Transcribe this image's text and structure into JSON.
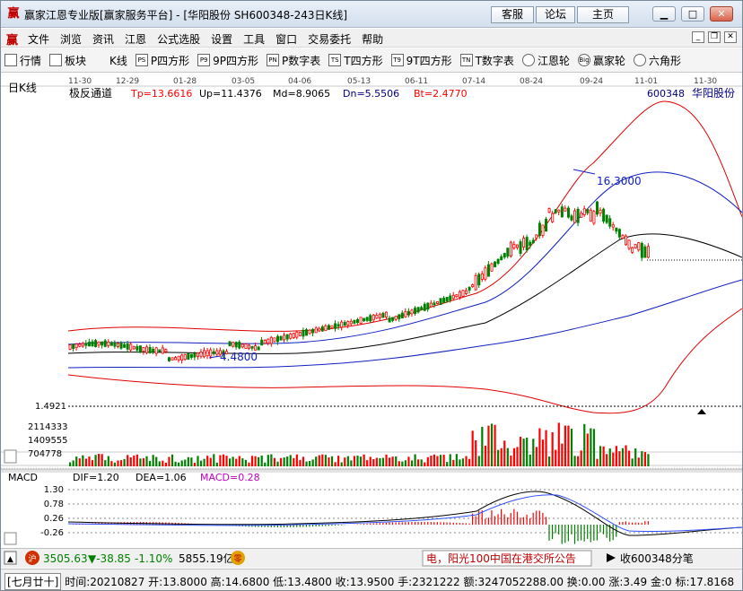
{
  "titlebar": {
    "logo_glyph": "赢",
    "title": "赢家江恩专业版[赢家服务平台] - [华阳股份  SH600348-243日K线]",
    "btn_kefu": "客服",
    "btn_luntan": "论坛",
    "btn_home": "主页"
  },
  "menubar": {
    "items": [
      "文件",
      "浏览",
      "资讯",
      "江恩",
      "公式选股",
      "设置",
      "工具",
      "窗口",
      "交易委托",
      "帮助"
    ]
  },
  "toolbar": {
    "items": [
      {
        "label": "行情",
        "icon": "grid-icon"
      },
      {
        "label": "板块",
        "icon": "sector-icon"
      },
      {
        "label": "K线",
        "icon": "candlestick-icon"
      },
      {
        "label": "P四方形",
        "icon": "ps-icon"
      },
      {
        "label": "9P四方形",
        "icon": "9p-icon"
      },
      {
        "label": "P数字表",
        "icon": "pn-icon"
      },
      {
        "label": "T四方形",
        "icon": "ts-icon"
      },
      {
        "label": "9T四方形",
        "icon": "9t-icon"
      },
      {
        "label": "T数字表",
        "icon": "tn-icon"
      },
      {
        "label": "江恩轮",
        "icon": "gann-wheel-icon"
      },
      {
        "label": "赢家轮",
        "icon": "winner-wheel-icon"
      },
      {
        "label": "六角形",
        "icon": "hexagon-icon"
      }
    ],
    "icon_text": [
      "",
      "",
      "",
      "PS",
      "P9",
      "PN",
      "TS",
      "T9",
      "TN",
      "",
      "Big",
      ""
    ]
  },
  "chart": {
    "side_label": "日K线",
    "date_ticks": [
      "11-30",
      "12-29",
      "01-28",
      "03-05",
      "04-06",
      "05-13",
      "06-11",
      "07-14",
      "08-24",
      "09-24",
      "11-01",
      "11-30"
    ],
    "indicator_name": "极反通道",
    "tp": "Tp=13.6616",
    "up": "Up=11.4376",
    "md": "Md=8.9065",
    "dn": "Dn=5.5506",
    "bt": "Bt=2.4770",
    "stock_code": "600348",
    "stock_name": "华阳股份",
    "price_high_label": "16.3000",
    "price_low_label": "4.4800",
    "price_axis_label": "1.4921",
    "vol_labels": [
      "2114333",
      "1409555",
      "704778"
    ],
    "macd_name": "MACD",
    "dif": "DIF=1.20",
    "dea": "DEA=1.06",
    "macd": "MACD=0.28",
    "macd_axis": [
      "1.30",
      "0.78",
      "0.26",
      "-0.26"
    ]
  },
  "index_bar": {
    "index_value": "3505.63",
    "change": "▼-38.85",
    "pct": "-1.10%",
    "amount": "5855.19亿",
    "ticker_text": "电，阳光100中国在港交所公告",
    "receive": "收600348分笔"
  },
  "statusbar": {
    "lunar": "[七月廿十]",
    "time": "时间:20210827",
    "open": "开:13.8000",
    "high": "高:14.6800",
    "low": "低:13.4800",
    "close": "收:13.9500",
    "hands": "手:2321222",
    "amount": "额:3247052288.00",
    "turnover": "换:0.00",
    "rise": "涨:3.49",
    "amplitude": "金:0",
    "mark": "标:17.8168"
  },
  "colors": {
    "up": "#ff0000",
    "down": "#008000",
    "dark_band": "#1a1a8a",
    "macd_dif": "#000000",
    "macd_dea": "#3050ff",
    "macd_label": "#c000c0"
  }
}
